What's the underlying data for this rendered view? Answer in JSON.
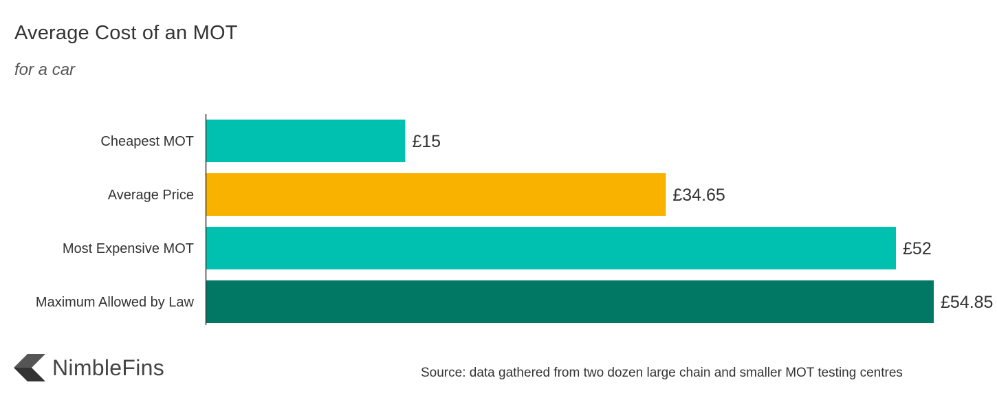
{
  "header": {
    "title": "Average Cost of an MOT",
    "subtitle": "for a car"
  },
  "chart_data": {
    "type": "bar",
    "orientation": "horizontal",
    "categories": [
      "Cheapest MOT",
      "Average Price",
      "Most Expensive MOT",
      "Maximum Allowed by Law"
    ],
    "values": [
      15,
      34.65,
      52,
      54.85
    ],
    "value_labels": [
      "£15",
      "£34.65",
      "£52",
      "£54.85"
    ],
    "colors": [
      "#00c1af",
      "#f9b200",
      "#00c1af",
      "#007864"
    ],
    "title": "Average Cost of an MOT",
    "subtitle": "for a car",
    "xlim": [
      0,
      54.85
    ],
    "grid": false,
    "legend": "none"
  },
  "footer": {
    "brand": "NimbleFins",
    "brand_logo_icon": "chevron-left-logo-icon",
    "source": "Source: data gathered from two dozen large chain and smaller MOT testing centres"
  }
}
